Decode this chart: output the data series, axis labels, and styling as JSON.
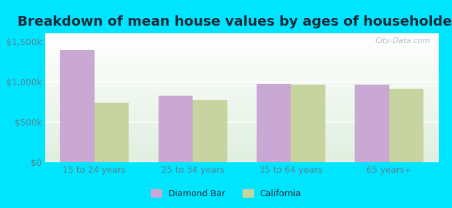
{
  "title": "Breakdown of mean house values by ages of householders",
  "categories": [
    "15 to 24 years",
    "25 to 34 years",
    "35 to 64 years",
    "65 years+"
  ],
  "diamond_bar_values": [
    1390000,
    830000,
    975000,
    960000
  ],
  "california_values": [
    740000,
    775000,
    960000,
    910000
  ],
  "bar_color_diamond": "#c9a8d4",
  "bar_color_california": "#c8d4a0",
  "background_outer": "#00e5ff",
  "ylim": [
    0,
    1600000
  ],
  "yticks": [
    0,
    500000,
    1000000,
    1500000
  ],
  "ytick_labels": [
    "$0",
    "$500k",
    "$1,000k",
    "$1,500k"
  ],
  "legend_diamond": "Diamond Bar",
  "legend_california": "California",
  "title_fontsize": 14,
  "tick_fontsize": 9,
  "legend_fontsize": 9,
  "bar_width": 0.35,
  "watermark_text": "City-Data.com"
}
